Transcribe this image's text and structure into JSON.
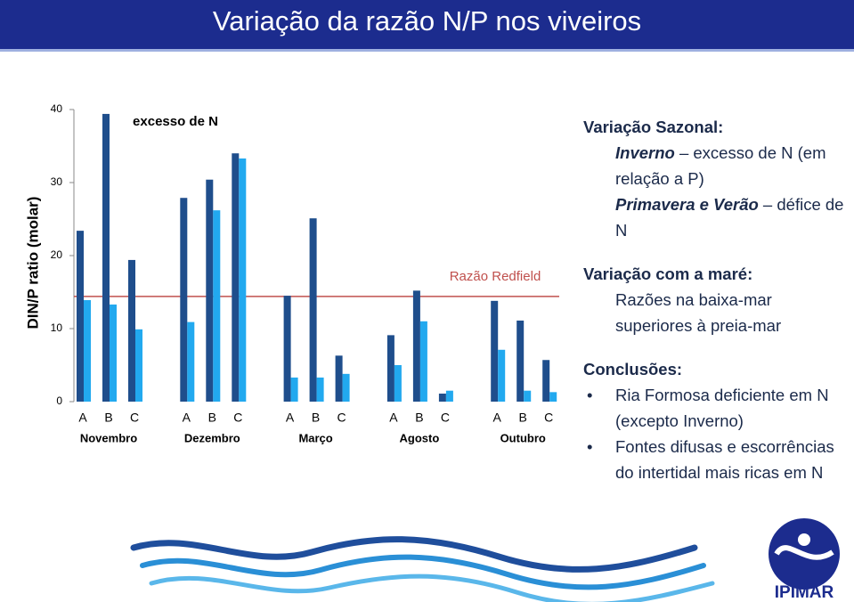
{
  "slide": {
    "title": "Variação da razão N/P nos viveiros",
    "notes": [
      {
        "heading": "Variação Sazonal:",
        "items": [
          {
            "emphasis": "Inverno",
            "text": " – excesso de N (em relação a P)"
          },
          {
            "emphasis": "Primavera e Verão",
            "text": " – défice de N"
          }
        ]
      },
      {
        "heading": "Variação com  a maré:",
        "items": [
          {
            "text": "Razões na baixa-mar superiores  à preia-mar"
          }
        ]
      },
      {
        "heading": "Conclusões:",
        "bullets": [
          "Ria Formosa deficiente em N (excepto Inverno)",
          "Fontes difusas e escorrências do intertidal mais ricas em N"
        ]
      }
    ],
    "logo": "IPIMAR"
  },
  "chart_data": {
    "type": "bar",
    "ylabel": "DIN/P ratio (molar)",
    "annotation": "excesso de N",
    "categories": [
      "A",
      "B",
      "C",
      "A",
      "B",
      "C",
      "A",
      "B",
      "C",
      "A",
      "B",
      "C",
      "A",
      "B",
      "C"
    ],
    "groups": [
      "Novembro",
      "Dezembro",
      "Março",
      "Agosto",
      "Outubro"
    ],
    "series": [
      {
        "color": "#1f4e8c",
        "values": [
          23.4,
          39.4,
          19.4,
          27.9,
          30.4,
          34.0,
          14.5,
          25.1,
          6.3,
          9.1,
          15.2,
          1.1,
          13.8,
          11.1,
          5.7
        ]
      },
      {
        "color": "#22a9ef",
        "values": [
          13.9,
          13.3,
          9.9,
          10.9,
          26.2,
          33.3,
          3.3,
          3.3,
          3.8,
          5.0,
          11.0,
          1.5,
          7.1,
          1.5,
          1.3
        ]
      }
    ],
    "reference_line": {
      "label": "Razão Redfield",
      "value": 14.4,
      "color": "#c0504d"
    },
    "ylim": [
      0,
      40
    ],
    "yticks": [
      0,
      10,
      20,
      30,
      40
    ]
  }
}
